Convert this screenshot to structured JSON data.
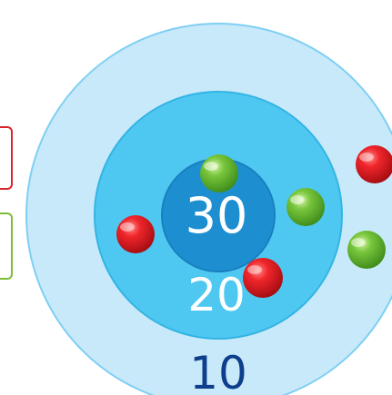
{
  "target": {
    "rings": [
      {
        "points": "10",
        "color": "#c8e9fa",
        "border": "#7fcff3"
      },
      {
        "points": "20",
        "color": "#4ec8f1",
        "border": "#33b4e4"
      },
      {
        "points": "30",
        "color": "#1d8fd1",
        "border": "#1a7fbf"
      }
    ],
    "label_colors": {
      "outer": "#0e3f8c",
      "middle": "#ffffff",
      "inner": "#ffffff"
    }
  },
  "balls": [
    {
      "color": "red",
      "hex": "#e32228"
    },
    {
      "color": "red",
      "hex": "#e32228"
    },
    {
      "color": "red",
      "hex": "#e32228"
    },
    {
      "color": "green",
      "hex": "#6bbd36"
    },
    {
      "color": "green",
      "hex": "#6bbd36"
    },
    {
      "color": "green",
      "hex": "#6bbd36"
    }
  ],
  "side_boxes": [
    {
      "color": "red",
      "hex": "#d9242d"
    },
    {
      "color": "green",
      "hex": "#7dbd39"
    }
  ]
}
